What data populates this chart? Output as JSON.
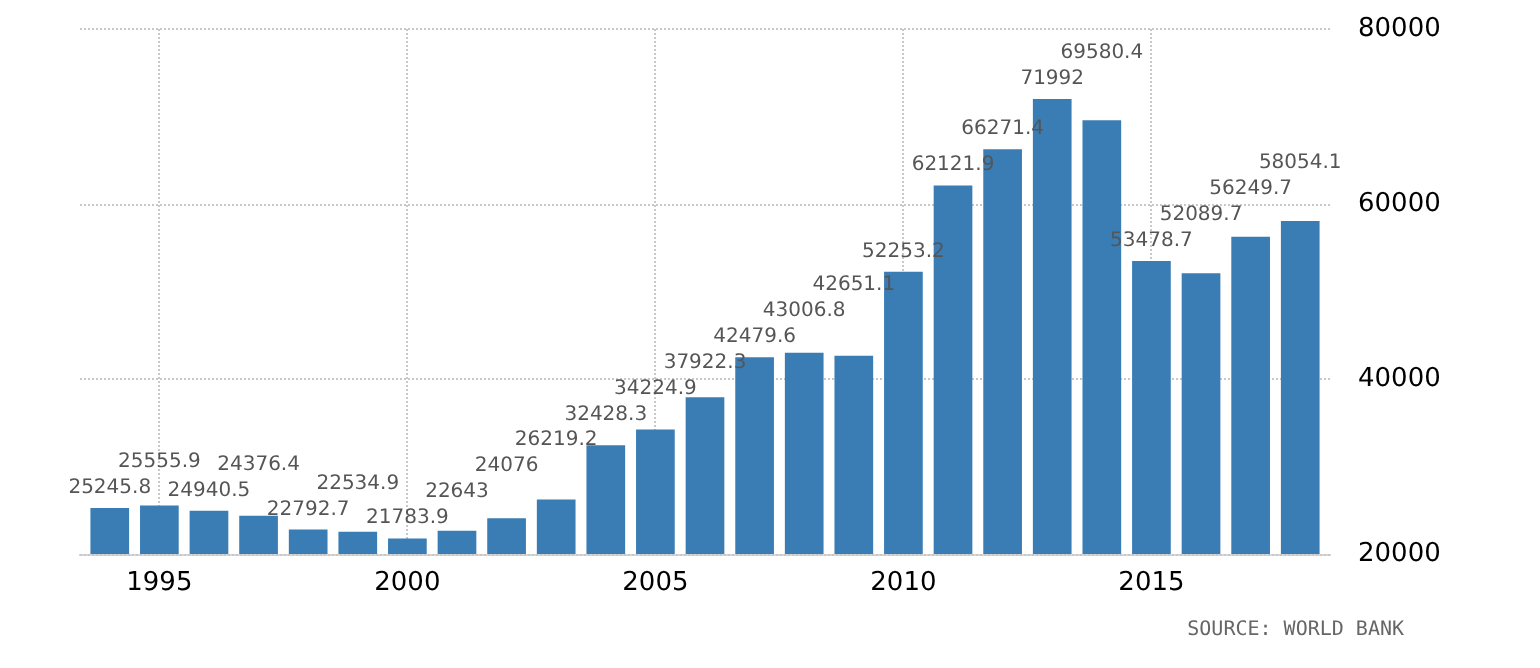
{
  "chart_data": {
    "type": "bar",
    "x": [
      1994,
      1995,
      1996,
      1997,
      1998,
      1999,
      2000,
      2001,
      2002,
      2003,
      2004,
      2005,
      2006,
      2007,
      2008,
      2009,
      2010,
      2011,
      2012,
      2013,
      2014,
      2015,
      2016,
      2017,
      2018
    ],
    "values": [
      25245.8,
      25555.9,
      24940.5,
      24376.4,
      22792.7,
      22534.9,
      21783.9,
      22643,
      24076,
      26219.2,
      32428.3,
      34224.9,
      37922.3,
      42479.6,
      43006.8,
      42651.1,
      52253.2,
      62121.9,
      66271.4,
      71992,
      69580.4,
      53478.7,
      52089.7,
      56249.7,
      58054.1
    ],
    "color": "#3a7db5",
    "data_labels": true,
    "xlim": [
      1993.4,
      2018.6
    ],
    "xticks": [
      1995,
      2000,
      2005,
      2010,
      2015
    ],
    "ylim": [
      20000,
      80000
    ],
    "yticks": [
      20000,
      40000,
      60000,
      80000
    ],
    "grid": true,
    "annotations": [
      "SOURCE: WORLD BANK"
    ]
  }
}
